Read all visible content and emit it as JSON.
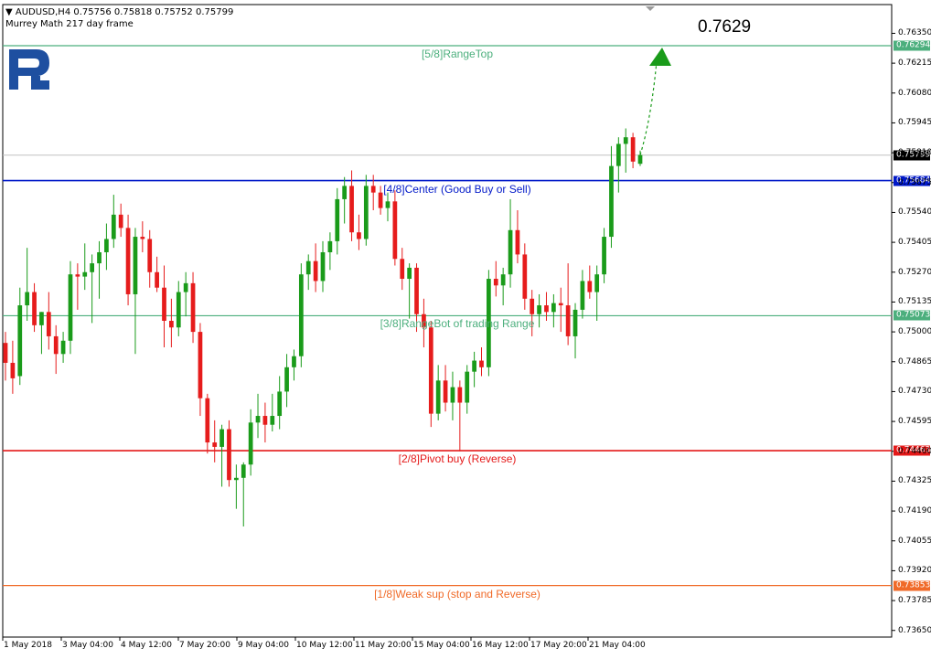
{
  "header": {
    "symbol_line": "AUDUSD,H4  0.75756 0.75818 0.75752 0.75799",
    "indicator_line": "Murrey Math 217 day frame"
  },
  "target": {
    "label": "0.7629",
    "value": 0.7629
  },
  "colors": {
    "bull": "#1a9b1a",
    "bear": "#e61c1c",
    "level_green": "#4caf7d",
    "level_blue": "#0018c8",
    "level_red": "#e41818",
    "level_orange": "#f06a28",
    "logo": "#1e4fa0"
  },
  "chart_data": {
    "type": "candlestick",
    "symbol": "AUDUSD",
    "timeframe": "H4",
    "ylim": [
      0.7362,
      0.7648
    ],
    "y_ticks": [
      "0.76350",
      "0.76215",
      "0.76080",
      "0.75945",
      "0.75810",
      "0.75675",
      "0.75540",
      "0.75405",
      "0.75270",
      "0.75135",
      "0.75000",
      "0.74865",
      "0.74730",
      "0.74595",
      "0.74460",
      "0.74325",
      "0.74190",
      "0.74055",
      "0.73920",
      "0.73785",
      "0.73650"
    ],
    "x_ticks": [
      "1 May 2018",
      "3 May 04:00",
      "4 May 12:00",
      "7 May 20:00",
      "9 May 04:00",
      "10 May 12:00",
      "11 May 20:00",
      "15 May 04:00",
      "16 May 12:00",
      "17 May 20:00",
      "21 May 04:00"
    ],
    "last_price": {
      "label": "0.75799",
      "value": 0.75799
    },
    "levels": [
      {
        "name": "[5/8]RangeTop",
        "value": 0.76294,
        "price_label": "0.76294",
        "color": "#4caf7d"
      },
      {
        "name": "[4/8]Center (Good Buy or Sell)",
        "value": 0.75684,
        "price_label": "0.75684",
        "color": "#0018c8"
      },
      {
        "name": "[3/8]RangeBot of trading Range",
        "value": 0.75073,
        "price_label": "0.75073",
        "color": "#4caf7d"
      },
      {
        "name": "[2/8]Pivot buy (Reverse)",
        "value": 0.74463,
        "price_label": "0.74463",
        "color": "#e41818"
      },
      {
        "name": "[1/8]Weak sup (stop and Reverse)",
        "value": 0.73853,
        "price_label": "0.73853",
        "color": "#f06a28"
      }
    ],
    "forecast": {
      "from": 0.758,
      "to": 0.7629
    },
    "candles": [
      {
        "o": 0.7495,
        "h": 0.75,
        "l": 0.7478,
        "c": 0.7486
      },
      {
        "o": 0.7486,
        "h": 0.7496,
        "l": 0.7472,
        "c": 0.7479
      },
      {
        "o": 0.748,
        "h": 0.752,
        "l": 0.7476,
        "c": 0.7512
      },
      {
        "o": 0.7512,
        "h": 0.7538,
        "l": 0.7505,
        "c": 0.7518
      },
      {
        "o": 0.7518,
        "h": 0.7522,
        "l": 0.75,
        "c": 0.7503
      },
      {
        "o": 0.7503,
        "h": 0.7509,
        "l": 0.749,
        "c": 0.7509
      },
      {
        "o": 0.7509,
        "h": 0.7518,
        "l": 0.7492,
        "c": 0.7498
      },
      {
        "o": 0.7498,
        "h": 0.7503,
        "l": 0.7481,
        "c": 0.749
      },
      {
        "o": 0.749,
        "h": 0.75,
        "l": 0.7486,
        "c": 0.7496
      },
      {
        "o": 0.7496,
        "h": 0.7532,
        "l": 0.749,
        "c": 0.7526
      },
      {
        "o": 0.7526,
        "h": 0.7531,
        "l": 0.751,
        "c": 0.7525
      },
      {
        "o": 0.7525,
        "h": 0.754,
        "l": 0.7519,
        "c": 0.7527
      },
      {
        "o": 0.7527,
        "h": 0.7535,
        "l": 0.7504,
        "c": 0.7531
      },
      {
        "o": 0.7531,
        "h": 0.7541,
        "l": 0.7515,
        "c": 0.7536
      },
      {
        "o": 0.7536,
        "h": 0.7549,
        "l": 0.7528,
        "c": 0.7542
      },
      {
        "o": 0.7542,
        "h": 0.7562,
        "l": 0.7538,
        "c": 0.7553
      },
      {
        "o": 0.7553,
        "h": 0.7558,
        "l": 0.7543,
        "c": 0.7547
      },
      {
        "o": 0.7547,
        "h": 0.7553,
        "l": 0.7512,
        "c": 0.7517
      },
      {
        "o": 0.7517,
        "h": 0.7547,
        "l": 0.749,
        "c": 0.7543
      },
      {
        "o": 0.7543,
        "h": 0.755,
        "l": 0.7536,
        "c": 0.7542
      },
      {
        "o": 0.7542,
        "h": 0.7546,
        "l": 0.752,
        "c": 0.7527
      },
      {
        "o": 0.7527,
        "h": 0.7534,
        "l": 0.7518,
        "c": 0.752
      },
      {
        "o": 0.752,
        "h": 0.753,
        "l": 0.7493,
        "c": 0.7505
      },
      {
        "o": 0.7505,
        "h": 0.7515,
        "l": 0.7493,
        "c": 0.7502
      },
      {
        "o": 0.7502,
        "h": 0.7523,
        "l": 0.7498,
        "c": 0.7518
      },
      {
        "o": 0.7518,
        "h": 0.7527,
        "l": 0.7507,
        "c": 0.7522
      },
      {
        "o": 0.7522,
        "h": 0.7527,
        "l": 0.7495,
        "c": 0.75
      },
      {
        "o": 0.75,
        "h": 0.7504,
        "l": 0.7462,
        "c": 0.747
      },
      {
        "o": 0.747,
        "h": 0.7472,
        "l": 0.7445,
        "c": 0.745
      },
      {
        "o": 0.745,
        "h": 0.746,
        "l": 0.7441,
        "c": 0.7448
      },
      {
        "o": 0.7448,
        "h": 0.7458,
        "l": 0.743,
        "c": 0.7456
      },
      {
        "o": 0.7456,
        "h": 0.746,
        "l": 0.743,
        "c": 0.7433
      },
      {
        "o": 0.7433,
        "h": 0.744,
        "l": 0.742,
        "c": 0.7434
      },
      {
        "o": 0.7434,
        "h": 0.7441,
        "l": 0.7412,
        "c": 0.744
      },
      {
        "o": 0.744,
        "h": 0.7465,
        "l": 0.7435,
        "c": 0.7459
      },
      {
        "o": 0.7459,
        "h": 0.7472,
        "l": 0.7452,
        "c": 0.7462
      },
      {
        "o": 0.7462,
        "h": 0.7468,
        "l": 0.745,
        "c": 0.7458
      },
      {
        "o": 0.7458,
        "h": 0.7472,
        "l": 0.7455,
        "c": 0.7462
      },
      {
        "o": 0.7462,
        "h": 0.748,
        "l": 0.7456,
        "c": 0.7473
      },
      {
        "o": 0.7473,
        "h": 0.749,
        "l": 0.7466,
        "c": 0.7484
      },
      {
        "o": 0.7484,
        "h": 0.7492,
        "l": 0.7478,
        "c": 0.7489
      },
      {
        "o": 0.7489,
        "h": 0.7531,
        "l": 0.7484,
        "c": 0.7526
      },
      {
        "o": 0.7526,
        "h": 0.7535,
        "l": 0.7519,
        "c": 0.7532
      },
      {
        "o": 0.7532,
        "h": 0.754,
        "l": 0.7518,
        "c": 0.7523
      },
      {
        "o": 0.7523,
        "h": 0.7541,
        "l": 0.7518,
        "c": 0.7536
      },
      {
        "o": 0.7536,
        "h": 0.7545,
        "l": 0.7528,
        "c": 0.7541
      },
      {
        "o": 0.7541,
        "h": 0.7565,
        "l": 0.7535,
        "c": 0.756
      },
      {
        "o": 0.756,
        "h": 0.757,
        "l": 0.7549,
        "c": 0.7566
      },
      {
        "o": 0.7566,
        "h": 0.7573,
        "l": 0.7541,
        "c": 0.7545
      },
      {
        "o": 0.7545,
        "h": 0.7553,
        "l": 0.7537,
        "c": 0.7542
      },
      {
        "o": 0.7542,
        "h": 0.7571,
        "l": 0.7539,
        "c": 0.7566
      },
      {
        "o": 0.7566,
        "h": 0.7571,
        "l": 0.7555,
        "c": 0.7563
      },
      {
        "o": 0.7563,
        "h": 0.7566,
        "l": 0.7553,
        "c": 0.7556
      },
      {
        "o": 0.7556,
        "h": 0.7563,
        "l": 0.755,
        "c": 0.7559
      },
      {
        "o": 0.7559,
        "h": 0.7564,
        "l": 0.753,
        "c": 0.7533
      },
      {
        "o": 0.7533,
        "h": 0.7538,
        "l": 0.7519,
        "c": 0.7524
      },
      {
        "o": 0.7524,
        "h": 0.7531,
        "l": 0.7506,
        "c": 0.7529
      },
      {
        "o": 0.7529,
        "h": 0.7531,
        "l": 0.75,
        "c": 0.7508
      },
      {
        "o": 0.7508,
        "h": 0.7515,
        "l": 0.7493,
        "c": 0.7502
      },
      {
        "o": 0.7502,
        "h": 0.7505,
        "l": 0.7457,
        "c": 0.7463
      },
      {
        "o": 0.7463,
        "h": 0.7485,
        "l": 0.746,
        "c": 0.7478
      },
      {
        "o": 0.7478,
        "h": 0.7485,
        "l": 0.7464,
        "c": 0.7468
      },
      {
        "o": 0.7468,
        "h": 0.7482,
        "l": 0.746,
        "c": 0.7475
      },
      {
        "o": 0.7475,
        "h": 0.7478,
        "l": 0.7446,
        "c": 0.7468
      },
      {
        "o": 0.7468,
        "h": 0.7485,
        "l": 0.7463,
        "c": 0.7482
      },
      {
        "o": 0.7482,
        "h": 0.7491,
        "l": 0.7475,
        "c": 0.7487
      },
      {
        "o": 0.7487,
        "h": 0.7493,
        "l": 0.748,
        "c": 0.7484
      },
      {
        "o": 0.7484,
        "h": 0.7528,
        "l": 0.748,
        "c": 0.7524
      },
      {
        "o": 0.7524,
        "h": 0.7532,
        "l": 0.7516,
        "c": 0.7521
      },
      {
        "o": 0.7521,
        "h": 0.7529,
        "l": 0.7512,
        "c": 0.7526
      },
      {
        "o": 0.7526,
        "h": 0.756,
        "l": 0.752,
        "c": 0.7546
      },
      {
        "o": 0.7546,
        "h": 0.7555,
        "l": 0.7531,
        "c": 0.7535
      },
      {
        "o": 0.7535,
        "h": 0.754,
        "l": 0.751,
        "c": 0.7515
      },
      {
        "o": 0.7515,
        "h": 0.7519,
        "l": 0.7498,
        "c": 0.7508
      },
      {
        "o": 0.7508,
        "h": 0.7517,
        "l": 0.7502,
        "c": 0.7512
      },
      {
        "o": 0.7512,
        "h": 0.7518,
        "l": 0.7505,
        "c": 0.7509
      },
      {
        "o": 0.7509,
        "h": 0.7517,
        "l": 0.7502,
        "c": 0.7513
      },
      {
        "o": 0.7513,
        "h": 0.752,
        "l": 0.75,
        "c": 0.7512
      },
      {
        "o": 0.7512,
        "h": 0.7531,
        "l": 0.7494,
        "c": 0.7498
      },
      {
        "o": 0.7498,
        "h": 0.7513,
        "l": 0.7488,
        "c": 0.751
      },
      {
        "o": 0.751,
        "h": 0.7528,
        "l": 0.7506,
        "c": 0.7523
      },
      {
        "o": 0.7523,
        "h": 0.753,
        "l": 0.7515,
        "c": 0.7518
      },
      {
        "o": 0.7518,
        "h": 0.753,
        "l": 0.7505,
        "c": 0.7526
      },
      {
        "o": 0.7526,
        "h": 0.7547,
        "l": 0.7522,
        "c": 0.7543
      },
      {
        "o": 0.7543,
        "h": 0.7584,
        "l": 0.7538,
        "c": 0.7575
      },
      {
        "o": 0.7575,
        "h": 0.7588,
        "l": 0.7563,
        "c": 0.7585
      },
      {
        "o": 0.7585,
        "h": 0.7592,
        "l": 0.7572,
        "c": 0.7588
      },
      {
        "o": 0.7588,
        "h": 0.759,
        "l": 0.7574,
        "c": 0.7577
      },
      {
        "o": 0.7576,
        "h": 0.7582,
        "l": 0.7575,
        "c": 0.758
      }
    ]
  }
}
